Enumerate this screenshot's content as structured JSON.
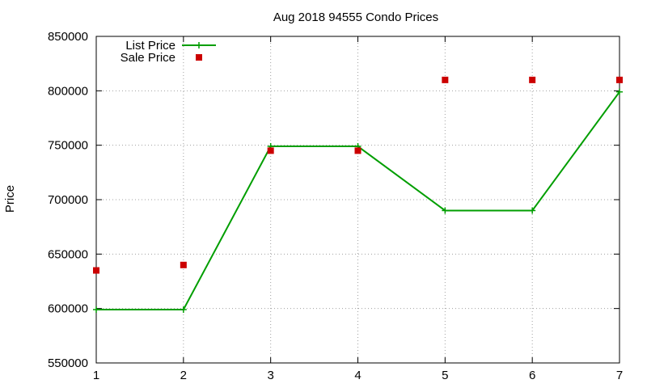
{
  "chart_data": {
    "type": "line",
    "title": "Aug 2018 94555 Condo Prices",
    "xlabel": "",
    "ylabel": "Price",
    "x": [
      1,
      2,
      3,
      4,
      5,
      6,
      7
    ],
    "xlim": [
      1,
      7
    ],
    "ylim": [
      550000,
      850000
    ],
    "xticks": [
      "1",
      "2",
      "3",
      "4",
      "5",
      "6",
      "7"
    ],
    "yticks": [
      "550000",
      "600000",
      "650000",
      "700000",
      "750000",
      "800000",
      "850000"
    ],
    "grid": true,
    "legend_position": "top-left",
    "series": [
      {
        "name": "List Price",
        "style": "line-with-plus-markers",
        "color": "#009e00",
        "values": [
          599000,
          599000,
          749000,
          749000,
          690000,
          690000,
          799000
        ]
      },
      {
        "name": "Sale Price",
        "style": "square-markers",
        "color": "#cc0000",
        "values": [
          635000,
          640000,
          745000,
          745000,
          810000,
          810000,
          810000
        ]
      }
    ]
  }
}
